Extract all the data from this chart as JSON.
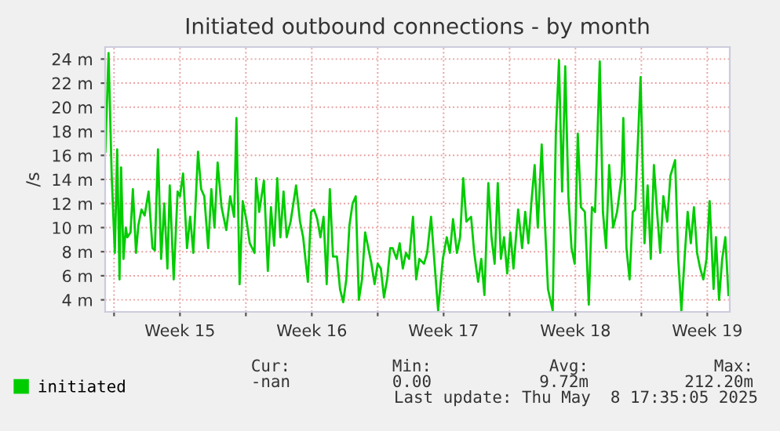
{
  "chart_data": {
    "type": "line",
    "title": "Initiated outbound connections - by month",
    "ylabel": "/s",
    "x": [
      "2025-04-06T13:00",
      "2025-04-06T17:00",
      "2025-04-06T21:00",
      "2025-04-07T01:00",
      "2025-04-07T04:00",
      "2025-04-07T07:00",
      "2025-04-07T09:00",
      "2025-04-07T12:00",
      "2025-04-07T15:00",
      "2025-04-07T17:00",
      "2025-04-07T21:00",
      "2025-04-08T00:00",
      "2025-04-08T04:00",
      "2025-04-08T07:00",
      "2025-04-08T11:00",
      "2025-04-08T15:00",
      "2025-04-08T20:00",
      "2025-04-09T01:00",
      "2025-04-09T04:00",
      "2025-04-09T08:00",
      "2025-04-09T12:00",
      "2025-04-09T16:00",
      "2025-04-09T20:00",
      "2025-04-09T23:00",
      "2025-04-10T04:00",
      "2025-04-10T09:00",
      "2025-04-10T12:00",
      "2025-04-10T16:00",
      "2025-04-10T21:00",
      "2025-04-11T01:00",
      "2025-04-11T05:00",
      "2025-04-11T11:00",
      "2025-04-11T15:00",
      "2025-04-11T19:00",
      "2025-04-12T00:00",
      "2025-04-12T04:00",
      "2025-04-12T08:00",
      "2025-04-12T12:00",
      "2025-04-12T17:00",
      "2025-04-12T23:00",
      "2025-04-13T04:00",
      "2025-04-13T09:00",
      "2025-04-13T12:00",
      "2025-04-13T16:00",
      "2025-04-13T20:00",
      "2025-04-14T01:00",
      "2025-04-14T05:00",
      "2025-04-14T11:00",
      "2025-04-14T13:00",
      "2025-04-14T17:00",
      "2025-04-14T23:00",
      "2025-04-15T04:00",
      "2025-04-15T08:00",
      "2025-04-15T12:00",
      "2025-04-15T16:00",
      "2025-04-15T20:00",
      "2025-04-16T00:00",
      "2025-04-16T04:00",
      "2025-04-16T09:00",
      "2025-04-16T16:00",
      "2025-04-16T21:00",
      "2025-04-17T01:00",
      "2025-04-17T07:00",
      "2025-04-17T11:00",
      "2025-04-17T15:00",
      "2025-04-17T19:00",
      "2025-04-17T23:00",
      "2025-04-18T03:00",
      "2025-04-18T07:00",
      "2025-04-18T11:00",
      "2025-04-18T15:00",
      "2025-04-18T20:00",
      "2025-04-19T00:00",
      "2025-04-19T04:00",
      "2025-04-19T08:00",
      "2025-04-19T12:00",
      "2025-04-19T16:00",
      "2025-04-19T20:00",
      "2025-04-20T00:00",
      "2025-04-20T04:00",
      "2025-04-20T08:00",
      "2025-04-20T12:00",
      "2025-04-20T16:00",
      "2025-04-20T20:00",
      "2025-04-21T00:00",
      "2025-04-21T04:00",
      "2025-04-21T08:00",
      "2025-04-21T12:00",
      "2025-04-21T16:00",
      "2025-04-21T19:00",
      "2025-04-22T00:00",
      "2025-04-22T04:00",
      "2025-04-22T08:00",
      "2025-04-22T12:00",
      "2025-04-22T16:00",
      "2025-04-22T21:00",
      "2025-04-23T01:00",
      "2025-04-23T05:00",
      "2025-04-23T11:00",
      "2025-04-23T15:00",
      "2025-04-23T20:00",
      "2025-04-24T00:00",
      "2025-04-24T05:00",
      "2025-04-24T11:00",
      "2025-04-24T16:00",
      "2025-04-24T20:00",
      "2025-04-25T00:00",
      "2025-04-25T05:00",
      "2025-04-25T09:00",
      "2025-04-25T13:00",
      "2025-04-25T17:00",
      "2025-04-25T23:00",
      "2025-04-26T03:00",
      "2025-04-26T08:00",
      "2025-04-26T12:00",
      "2025-04-26T16:00",
      "2025-04-26T21:00",
      "2025-04-27T01:00",
      "2025-04-27T05:00",
      "2025-04-27T09:00",
      "2025-04-27T13:00",
      "2025-04-27T17:00",
      "2025-04-27T21:00",
      "2025-04-28T01:00",
      "2025-04-28T05:00",
      "2025-04-28T11:00",
      "2025-04-28T16:00",
      "2025-04-28T20:00",
      "2025-04-29T00:00",
      "2025-04-29T04:00",
      "2025-04-29T08:00",
      "2025-04-29T12:00",
      "2025-04-29T17:00",
      "2025-04-29T21:00",
      "2025-04-30T01:00",
      "2025-04-30T07:00",
      "2025-04-30T11:00",
      "2025-04-30T15:00",
      "2025-04-30T19:00",
      "2025-04-30T23:00",
      "2025-05-01T03:00",
      "2025-05-01T07:00",
      "2025-05-01T11:00",
      "2025-05-01T15:00",
      "2025-05-01T19:00",
      "2025-05-02T00:00",
      "2025-05-02T05:00",
      "2025-05-02T09:00",
      "2025-05-02T13:00",
      "2025-05-02T19:00",
      "2025-05-02T23:00",
      "2025-05-03T03:00",
      "2025-05-03T07:00",
      "2025-05-03T12:00",
      "2025-05-03T17:00",
      "2025-05-03T23:00",
      "2025-05-04T01:00",
      "2025-05-04T05:00",
      "2025-05-04T09:00",
      "2025-05-04T13:00",
      "2025-05-04T16:00",
      "2025-05-04T23:00",
      "2025-05-05T04:00",
      "2025-05-05T08:00",
      "2025-05-05T12:00",
      "2025-05-05T16:00",
      "2025-05-05T20:00",
      "2025-05-06T00:00",
      "2025-05-06T04:00",
      "2025-05-06T09:00",
      "2025-05-06T13:00",
      "2025-05-06T19:00",
      "2025-05-06T23:00",
      "2025-05-07T03:00",
      "2025-05-07T07:00",
      "2025-05-07T11:00",
      "2025-05-07T15:00",
      "2025-05-07T19:00",
      "2025-05-07T23:00",
      "2025-05-08T03:00",
      "2025-05-08T07:00",
      "2025-05-08T11:00",
      "2025-05-08T15:00",
      "2025-05-08T20:00",
      "2025-05-08T23:00",
      "2025-05-09T03:00",
      "2025-05-09T07:00",
      "2025-05-09T11:00",
      "2025-05-09T15:00"
    ],
    "series": [
      {
        "name": "initiated",
        "color": "#00cc00",
        "values": [
          16.3,
          24.5,
          14.3,
          7.9,
          16.5,
          5.7,
          15,
          7.4,
          10,
          9.2,
          9.6,
          13.2,
          7.9,
          10.2,
          11.5,
          11,
          13,
          8.3,
          8.1,
          16.5,
          7.4,
          12,
          6.6,
          13.5,
          5.7,
          13,
          12.6,
          14.5,
          8.3,
          10.9,
          7.9,
          16.3,
          13.2,
          12.6,
          8.3,
          13.2,
          10,
          15.4,
          11.7,
          9.8,
          12.6,
          10.9,
          19.1,
          5.3,
          12.2,
          10.5,
          8.7,
          7.9,
          14.1,
          11.3,
          13.9,
          6.4,
          11.7,
          8.5,
          14.1,
          9.2,
          13,
          9.2,
          10.5,
          13.5,
          10.5,
          9.2,
          5.5,
          11.3,
          11.5,
          10.7,
          9.2,
          10.9,
          5.3,
          13.2,
          7.6,
          7.6,
          4.9,
          3.8,
          5.7,
          10.2,
          12,
          12.6,
          4,
          5.7,
          9.6,
          8.3,
          7,
          5.3,
          7,
          6.6,
          4.2,
          5.7,
          8.3,
          8.3,
          7.4,
          8.7,
          6.6,
          7.9,
          7.4,
          10.9,
          5.7,
          7.4,
          7,
          7.9,
          10.9,
          7.4,
          3.1,
          7.4,
          9.2,
          7.9,
          10.7,
          7.9,
          9.2,
          14.1,
          10.5,
          10.9,
          7.9,
          5.5,
          7.4,
          4.4,
          13.7,
          9.2,
          7,
          13.7,
          7.4,
          9.2,
          6.2,
          9.6,
          6.6,
          11.5,
          8.3,
          11.3,
          8.7,
          12.2,
          15.2,
          10,
          16.9,
          10.5,
          4.9,
          3.1,
          17.8,
          23.9,
          13,
          23.4,
          12.6,
          8.3,
          7,
          17.8,
          11.7,
          11.3,
          3.6,
          11.7,
          11.3,
          23.8,
          11.3,
          8.3,
          15.2,
          10,
          11.3,
          14.3,
          19.1,
          8.3,
          5.7,
          11.3,
          11.5,
          22.5,
          8.7,
          13.5,
          7.4,
          15.2,
          11.3,
          7.9,
          12.6,
          10.5,
          14.3,
          15.6,
          7.4,
          3.1,
          7.4,
          11.3,
          8.7,
          11.7,
          7.9,
          6.6,
          5.7,
          7.4,
          12.2,
          4.9,
          9.2,
          4,
          7.4,
          9.2,
          4.4
        ]
      }
    ],
    "xlim": [
      "2025-04-06T12:40",
      "2025-05-09T16:40"
    ],
    "ylim": [
      3,
      25
    ],
    "xticks": [
      {
        "value": "2025-04-07",
        "label": null
      },
      {
        "value": "2025-04-10T12:00",
        "label": "Week 15"
      },
      {
        "value": "2025-04-14",
        "label": null
      },
      {
        "value": "2025-04-17T12:00",
        "label": "Week 16"
      },
      {
        "value": "2025-04-21",
        "label": null
      },
      {
        "value": "2025-04-24T12:00",
        "label": "Week 17"
      },
      {
        "value": "2025-04-28",
        "label": null
      },
      {
        "value": "2025-05-01T12:00",
        "label": "Week 18"
      },
      {
        "value": "2025-05-05",
        "label": null
      },
      {
        "value": "2025-05-08T12:00",
        "label": "Week 19"
      }
    ],
    "yticks": [
      {
        "value": 4,
        "label": "4 m"
      },
      {
        "value": 6,
        "label": "6 m"
      },
      {
        "value": 8,
        "label": "8 m"
      },
      {
        "value": 10,
        "label": "10 m"
      },
      {
        "value": 12,
        "label": "12 m"
      },
      {
        "value": 14,
        "label": "14 m"
      },
      {
        "value": 16,
        "label": "16 m"
      },
      {
        "value": 18,
        "label": "18 m"
      },
      {
        "value": 20,
        "label": "20 m"
      },
      {
        "value": 22,
        "label": "22 m"
      },
      {
        "value": 24,
        "label": "24 m"
      }
    ],
    "grid": true,
    "legend": "bottom left",
    "marker": "none",
    "line_style": "solid",
    "annotations": [
      "Cur:",
      "-nan",
      "Min:",
      "0.00",
      "Avg:",
      "9.72m",
      "Max:",
      "212.20m",
      "Last update: Thu May  8 17:35:05 2025"
    ]
  }
}
